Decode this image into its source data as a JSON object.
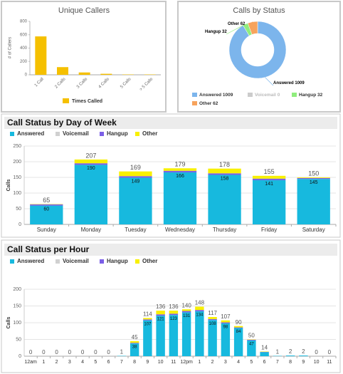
{
  "chart_data": [
    {
      "type": "bar",
      "title": "Unique Callers",
      "y_label": "# of Callers",
      "categories": [
        "1 Call",
        "2 Calls",
        "3 Calls",
        "4 Calls",
        "5 Calls",
        "> 5 Calls"
      ],
      "series": [
        {
          "name": "Times Called",
          "color": "#f5c000",
          "values": [
            575,
            115,
            35,
            15,
            5,
            5
          ]
        }
      ],
      "ylim": [
        0,
        800
      ],
      "yticks": [
        0,
        200,
        400,
        600,
        800
      ],
      "grid": false
    },
    {
      "type": "donut",
      "title": "Calls by Status",
      "labels": [
        "Answered",
        "Voicemail",
        "Hangup",
        "Other"
      ],
      "values": [
        1009,
        0,
        32,
        62
      ],
      "colors": [
        "#7cb5ec",
        "#cccccc",
        "#90ed7d",
        "#f7a35c"
      ]
    },
    {
      "type": "stacked_bar",
      "title": "Call Status by Day of Week",
      "y_label": "Calls",
      "categories": [
        "Sunday",
        "Monday",
        "Tuesday",
        "Wednesday",
        "Thursday",
        "Friday",
        "Saturday"
      ],
      "series": [
        {
          "name": "Answered",
          "color": "#17b9de",
          "values": [
            60,
            190,
            149,
            166,
            158,
            141,
            145
          ]
        },
        {
          "name": "Voicemail",
          "color": "#d0d0d0",
          "values": [
            0,
            0,
            0,
            0,
            0,
            0,
            0
          ]
        },
        {
          "name": "Hangup",
          "color": "#7b5fe6",
          "values": [
            4,
            5,
            5,
            5,
            5,
            5,
            3
          ]
        },
        {
          "name": "Other",
          "color": "#f8f000",
          "values": [
            1,
            12,
            15,
            8,
            15,
            9,
            2
          ]
        }
      ],
      "totals": [
        65,
        207,
        169,
        179,
        178,
        155,
        150
      ],
      "ylim": [
        0,
        250
      ],
      "yticks": [
        0,
        50,
        100,
        150,
        200,
        250
      ],
      "grid": true
    },
    {
      "type": "stacked_bar",
      "title": "Call Status per Hour",
      "y_label": "Calls",
      "categories": [
        "12am",
        "1",
        "2",
        "3",
        "4",
        "5",
        "6",
        "7",
        "8",
        "9",
        "10",
        "11",
        "12pm",
        "1",
        "2",
        "3",
        "4",
        "5",
        "6",
        "7",
        "8",
        "9",
        "10",
        "11"
      ],
      "series": [
        {
          "name": "Answered",
          "color": "#17b9de",
          "values": [
            0,
            0,
            0,
            0,
            0,
            0,
            0,
            1,
            38,
            107,
            121,
            123,
            131,
            134,
            108,
            98,
            84,
            47,
            12,
            1,
            2,
            2,
            0,
            0
          ]
        },
        {
          "name": "Voicemail",
          "color": "#d0d0d0",
          "values": [
            0,
            0,
            0,
            0,
            0,
            0,
            0,
            0,
            0,
            0,
            0,
            0,
            0,
            0,
            0,
            0,
            0,
            0,
            0,
            0,
            0,
            0,
            0,
            0
          ]
        },
        {
          "name": "Hangup",
          "color": "#7b5fe6",
          "values": [
            0,
            0,
            0,
            0,
            0,
            0,
            0,
            0,
            2,
            3,
            4,
            4,
            4,
            4,
            3,
            3,
            2,
            2,
            1,
            0,
            0,
            0,
            0,
            0
          ]
        },
        {
          "name": "Other",
          "color": "#f8f000",
          "values": [
            0,
            0,
            0,
            0,
            0,
            0,
            0,
            0,
            5,
            4,
            11,
            9,
            5,
            10,
            6,
            6,
            4,
            1,
            1,
            0,
            0,
            0,
            0,
            0
          ]
        }
      ],
      "totals": [
        0,
        0,
        0,
        0,
        0,
        0,
        0,
        1,
        45,
        114,
        136,
        136,
        140,
        148,
        117,
        107,
        90,
        50,
        14,
        1,
        2,
        2,
        0,
        0
      ],
      "ylim": [
        0,
        200
      ],
      "yticks": [
        0,
        50,
        100,
        150,
        200
      ],
      "grid": true
    }
  ]
}
